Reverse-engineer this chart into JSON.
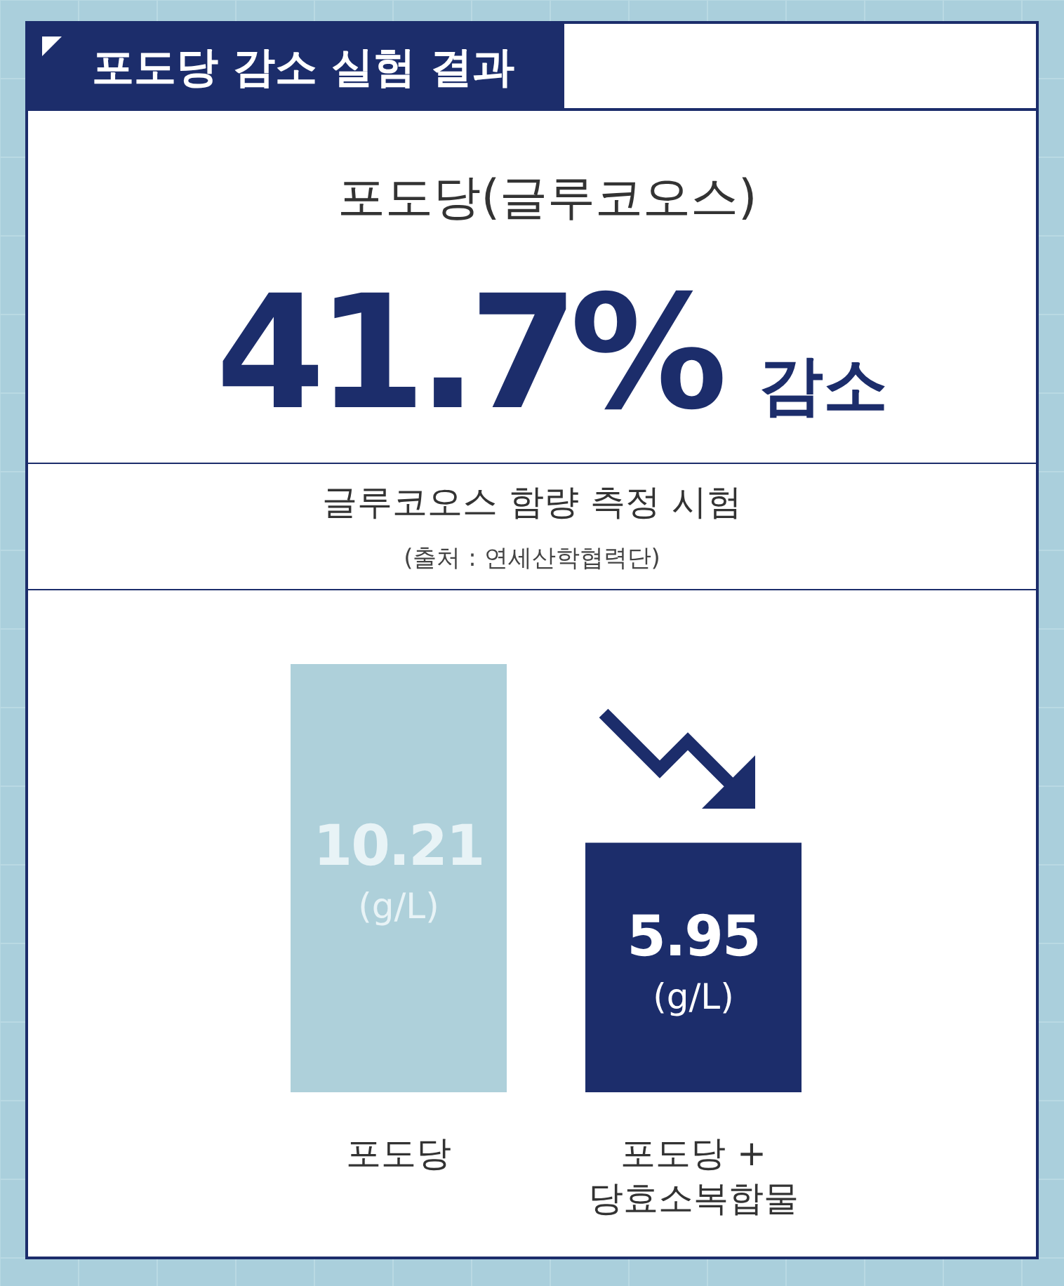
{
  "chart_data": {
    "type": "bar",
    "title": "포도당 감소 실험 결과",
    "subtitle": "포도당(글루코오스)",
    "annotations": [
      "41.7% 감소",
      "글루코오스 함량 측정 시험",
      "(출처 : 연세산학협력단)"
    ],
    "categories": [
      "포도당",
      "포도당 +\n당효소복합물"
    ],
    "values": [
      10.21,
      5.95
    ],
    "colors": [
      "#aed0da",
      "#1c2d6b"
    ],
    "value_labels": [
      "10.21\n(g/L)",
      "5.95\n(g/L)"
    ]
  }
}
